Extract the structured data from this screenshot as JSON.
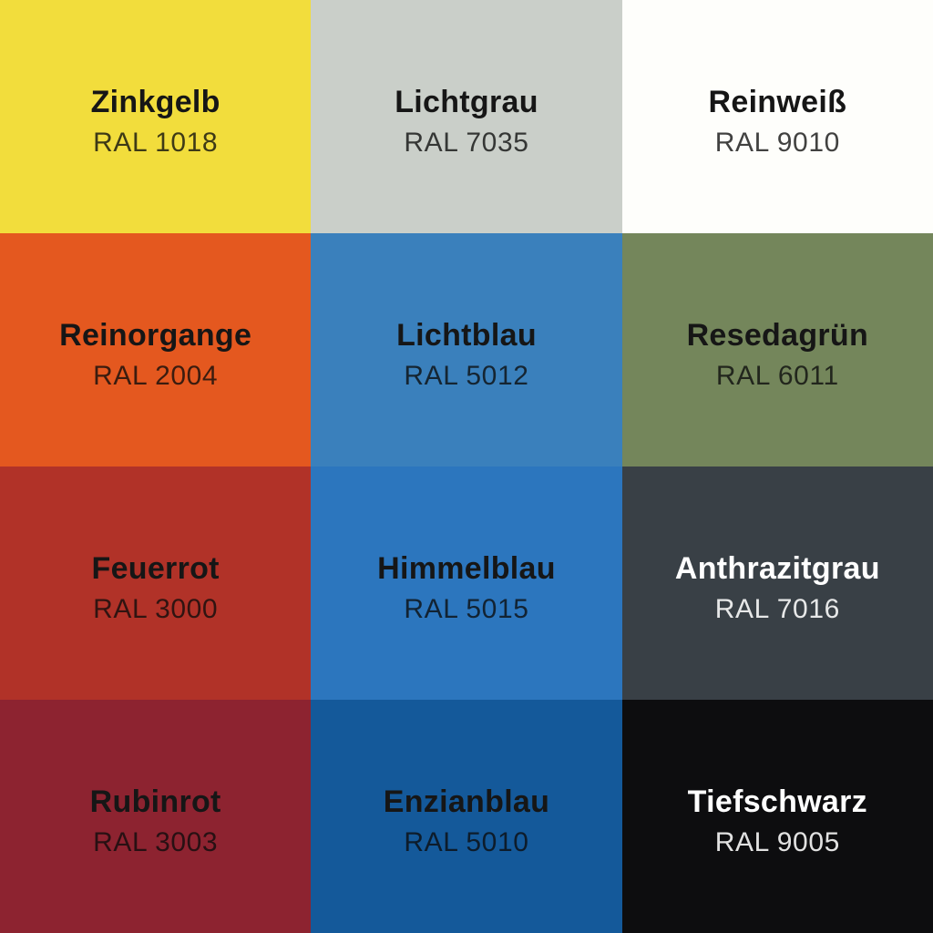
{
  "grid": {
    "rows": 4,
    "cols": 3
  },
  "text_colors": {
    "dark_name": "#161616",
    "dark_code": "rgba(12,12,12,0.78)",
    "light_name": "#FFFFFF",
    "light_code": "rgba(255,255,255,0.88)"
  },
  "swatches": [
    {
      "name": "Zinkgelb",
      "code": "RAL 1018",
      "color": "#F2DD3C",
      "text": "dark"
    },
    {
      "name": "Lichtgrau",
      "code": "RAL 7035",
      "color": "#CACFC9",
      "text": "dark"
    },
    {
      "name": "Reinweiß",
      "code": "RAL 9010",
      "color": "#FEFEFB",
      "text": "dark"
    },
    {
      "name": "Reinorgange",
      "code": "RAL 2004",
      "color": "#E4581F",
      "text": "dark"
    },
    {
      "name": "Lichtblau",
      "code": "RAL 5012",
      "color": "#3A80BC",
      "text": "dark"
    },
    {
      "name": "Resedagrün",
      "code": "RAL 6011",
      "color": "#74865B",
      "text": "dark"
    },
    {
      "name": "Feuerrot",
      "code": "RAL 3000",
      "color": "#B13228",
      "text": "dark"
    },
    {
      "name": "Himmelblau",
      "code": "RAL 5015",
      "color": "#2C76BE",
      "text": "dark"
    },
    {
      "name": "Anthrazitgrau",
      "code": "RAL 7016",
      "color": "#394046",
      "text": "light"
    },
    {
      "name": "Rubinrot",
      "code": "RAL 3003",
      "color": "#8D2330",
      "text": "dark"
    },
    {
      "name": "Enzianblau",
      "code": "RAL 5010",
      "color": "#14599A",
      "text": "dark"
    },
    {
      "name": "Tiefschwarz",
      "code": "RAL 9005",
      "color": "#0D0D0F",
      "text": "light"
    }
  ]
}
